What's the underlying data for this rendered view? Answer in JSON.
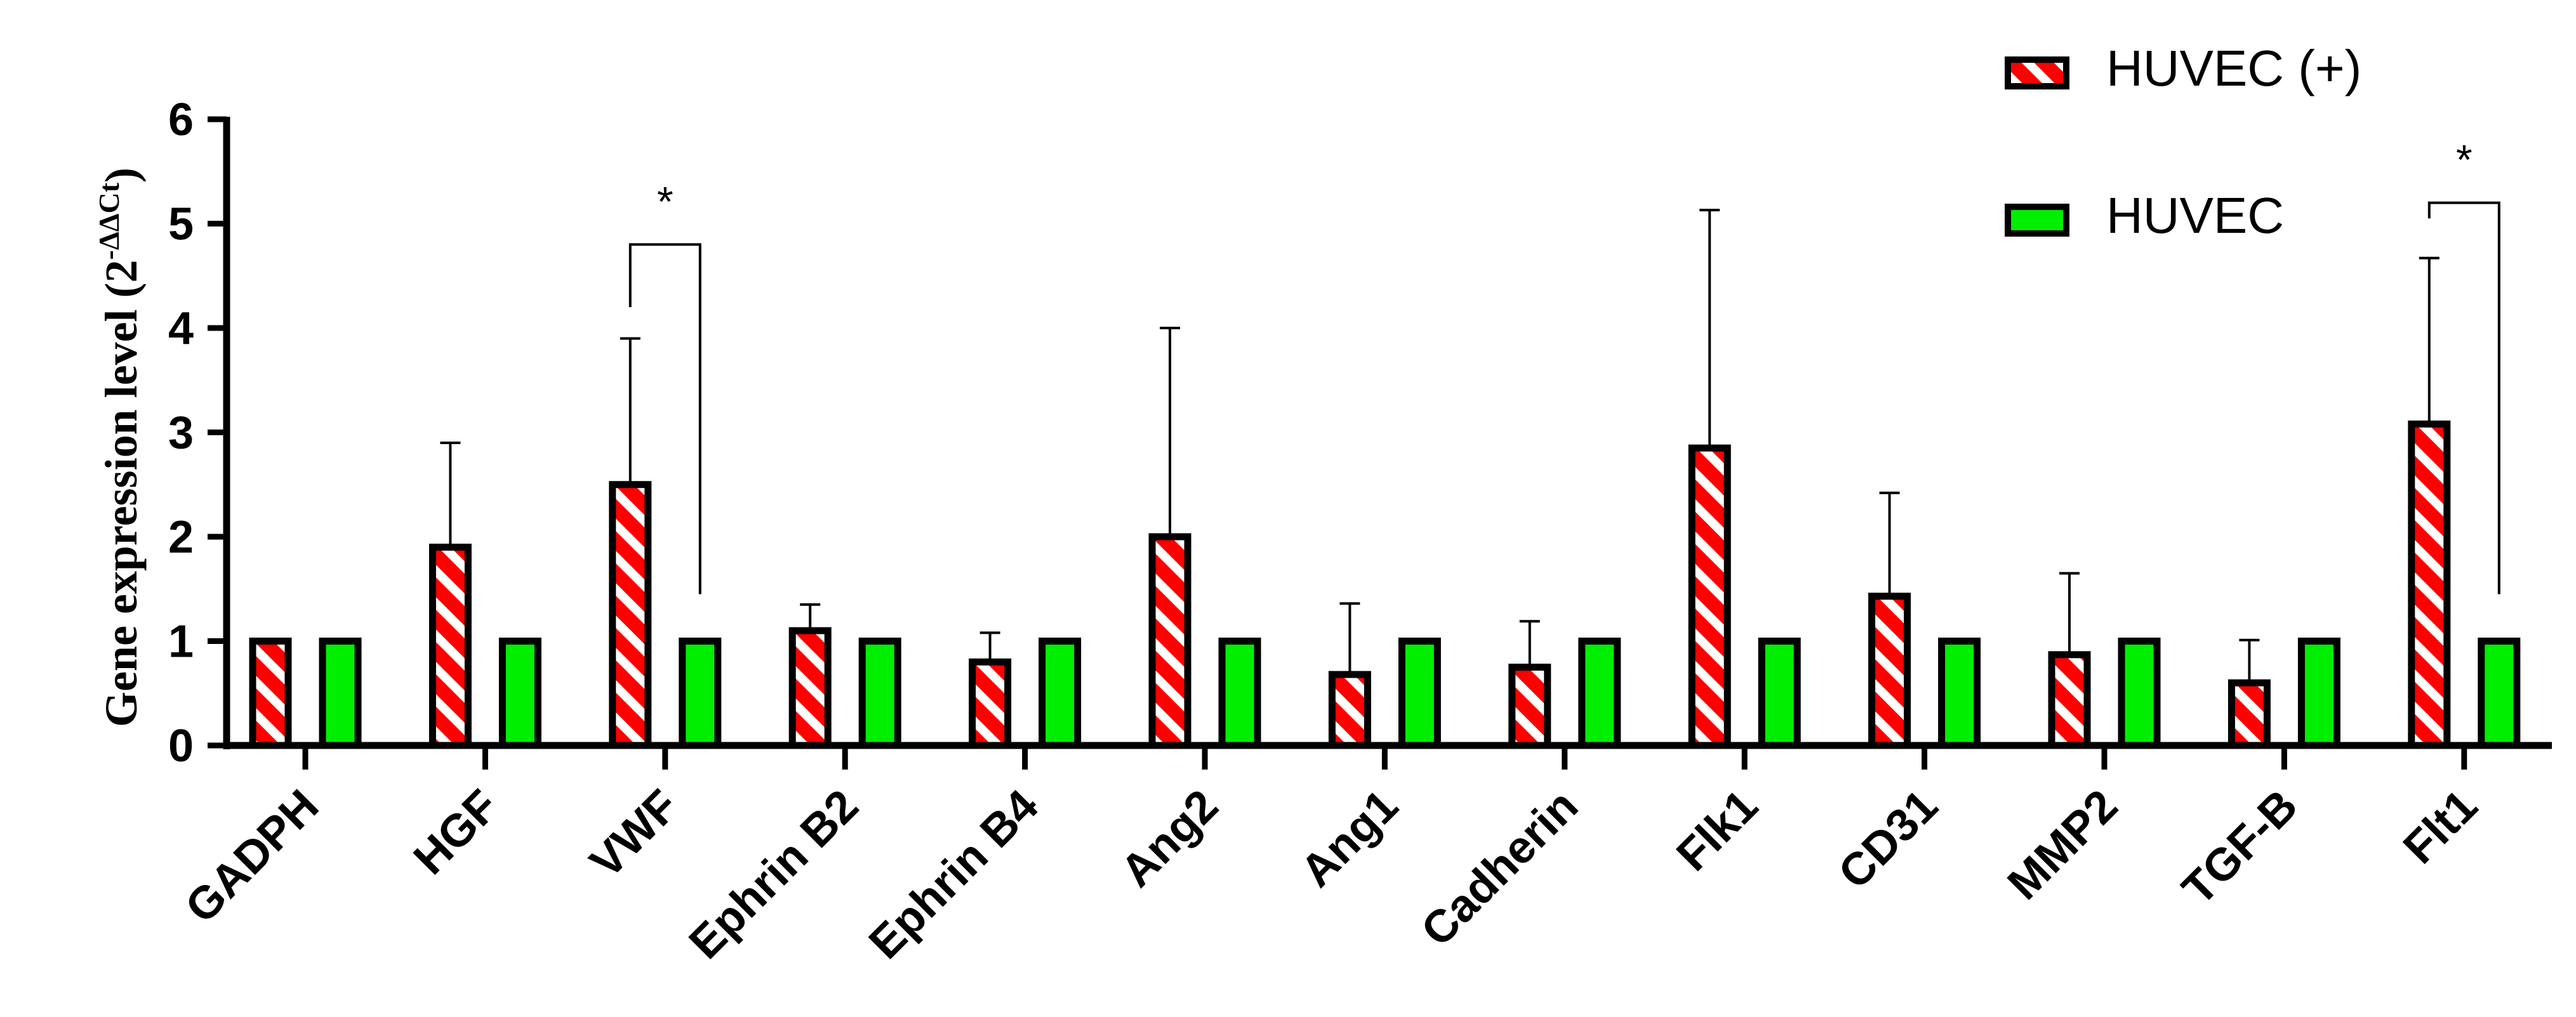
{
  "chart_data": {
    "type": "bar",
    "ylabel": {
      "main": "Gene expression level (2",
      "superscript": "-ΔΔCt",
      "close": ")"
    },
    "ylim": [
      0,
      6
    ],
    "yticks": [
      "0",
      "1",
      "2",
      "3",
      "4",
      "5",
      "6"
    ],
    "grid": false,
    "legend_position": "top-right",
    "categories": [
      "GADPH",
      "HGF",
      "VWF",
      "Ephrin B2",
      "Ephrin B4",
      "Ang2",
      "Ang1",
      "Cadherin",
      "Flk1",
      "CD31",
      "MMP2",
      "TGF-B",
      "Flt1"
    ],
    "series": [
      {
        "name": "HUVEC (+)",
        "pattern": "red-white-diagonal-stripes",
        "color": "#ff0000",
        "values": [
          1.0,
          1.9,
          2.5,
          1.1,
          0.8,
          2.0,
          0.68,
          0.75,
          2.85,
          1.43,
          0.87,
          0.6,
          3.08
        ],
        "error_upper": [
          1.0,
          2.9,
          3.9,
          1.35,
          1.08,
          4.0,
          1.36,
          1.19,
          5.13,
          2.42,
          1.65,
          1.01,
          4.67
        ]
      },
      {
        "name": "HUVEC",
        "color": "#00ee00",
        "values": [
          1.0,
          1.0,
          1.0,
          1.0,
          1.0,
          1.0,
          1.0,
          1.0,
          1.0,
          1.0,
          1.0,
          1.0,
          1.0
        ]
      }
    ],
    "significance": [
      {
        "category": "VWF",
        "label": "*"
      },
      {
        "category": "Flt1",
        "label": "*"
      }
    ]
  }
}
